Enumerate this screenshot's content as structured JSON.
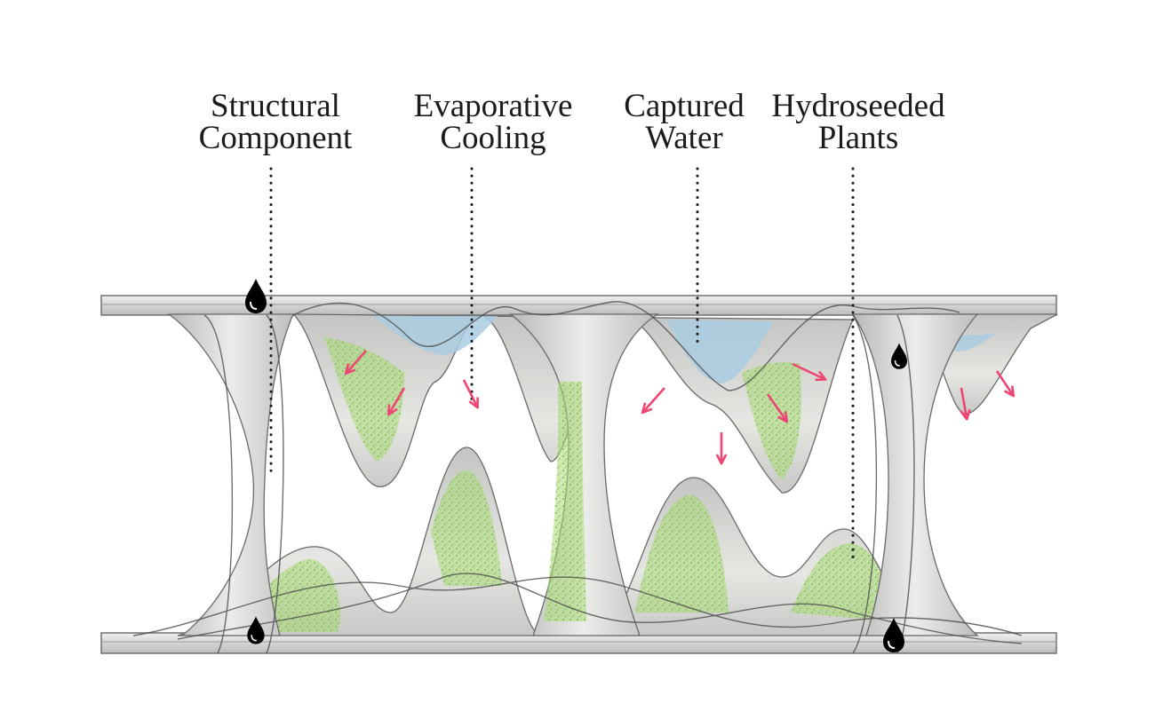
{
  "labels": {
    "structural": {
      "line1": "Structural",
      "line2": "Component"
    },
    "evaporative": {
      "line1": "Evaporative",
      "line2": "Cooling"
    },
    "water": {
      "line1": "Captured",
      "line2": "Water"
    },
    "plants": {
      "line1": "Hydroseeded",
      "line2": "Plants"
    }
  },
  "colors": {
    "surface": "#cfcfcf",
    "surface_light": "#e4e4e0",
    "edge": "#5c5c5c",
    "water": "#a9cde0",
    "vegetation": "#8fcf55",
    "arrow": "#ee4672",
    "droplet": "#000000",
    "leader": "#1a1a1a"
  }
}
